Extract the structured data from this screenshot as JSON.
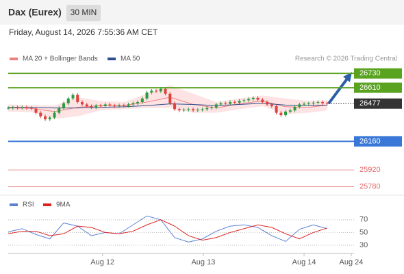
{
  "chart_data": {
    "type": "candlestick",
    "title": "Dax (Eurex)",
    "timeframe": "30 MIN",
    "timestamp": "Friday, August 14, 2026 7:55:36 AM CET",
    "source": "Research © 2026 Trading Central",
    "up_color": "#2e9a3e",
    "down_color": "#e0413a",
    "close": [
      26440,
      26445,
      26442,
      26448,
      26440,
      26435,
      26400,
      26370,
      26345,
      26360,
      26400,
      26440,
      26480,
      26520,
      26550,
      26490,
      26470,
      26455,
      26445,
      26460,
      26455,
      26470,
      26460,
      26455,
      26462,
      26458,
      26470,
      26480,
      26490,
      26520,
      26570,
      26585,
      26580,
      26600,
      26560,
      26480,
      26430,
      26420,
      26425,
      26430,
      26420,
      26425,
      26430,
      26440,
      26445,
      26470,
      26480,
      26475,
      26490,
      26485,
      26500,
      26505,
      26515,
      26525,
      26510,
      26490,
      26470,
      26455,
      26400,
      26380,
      26410,
      26420,
      26450,
      26470,
      26475,
      26478,
      26485,
      26490,
      26480,
      26477
    ],
    "xlim": [
      0,
      74.8
    ],
    "xticks": [
      {
        "value": 20.4,
        "label": "Aug 12"
      },
      {
        "value": 42.2,
        "label": "Aug 13"
      },
      {
        "value": 64,
        "label": "Aug 14"
      },
      {
        "value": 74.2,
        "label": "Aug 24"
      }
    ],
    "ylim": [
      25720,
      26800
    ],
    "series": [
      {
        "name": "MA 20 + Bollinger Bands",
        "color": "#f08080",
        "band_color": "#fde3e3",
        "x": [
          0,
          5,
          10,
          15,
          20,
          25,
          30,
          35,
          40,
          45,
          50,
          55,
          60,
          65,
          69
        ],
        "values": [
          26440,
          26438,
          26410,
          26445,
          26462,
          26462,
          26490,
          26530,
          26470,
          26440,
          26475,
          26500,
          26450,
          26445,
          26465
        ],
        "upper": [
          26470,
          26465,
          26460,
          26530,
          26500,
          26490,
          26560,
          26630,
          26560,
          26490,
          26520,
          26545,
          26520,
          26500,
          26505
        ],
        "lower": [
          26410,
          26405,
          26350,
          26370,
          26420,
          26430,
          26440,
          26440,
          26400,
          26400,
          26430,
          26455,
          26390,
          26400,
          26420
        ]
      },
      {
        "name": "MA 50",
        "color": "#2c4f8f",
        "x": [
          0,
          5,
          10,
          15,
          20,
          25,
          30,
          35,
          40,
          45,
          50,
          55,
          60,
          65,
          69
        ],
        "values": [
          26445,
          26445,
          26440,
          26440,
          26445,
          26450,
          26460,
          26475,
          26470,
          26460,
          26470,
          26480,
          26465,
          26460,
          26465
        ]
      }
    ],
    "levels": [
      {
        "value": 26730,
        "color": "#5aa321",
        "style": "box"
      },
      {
        "value": 26610,
        "color": "#5aa321",
        "style": "box"
      },
      {
        "value": 26477,
        "color": "#333333",
        "style": "dotted"
      },
      {
        "value": 26160,
        "color": "#3a78d8",
        "style": "box"
      },
      {
        "value": 25920,
        "color": "#e46a6a",
        "style": "text"
      },
      {
        "value": 25780,
        "color": "#e46a6a",
        "style": "text"
      }
    ],
    "indicator": {
      "ylim": [
        15,
        87
      ],
      "yticks": [
        30,
        50,
        70
      ],
      "series": [
        {
          "name": "RSI",
          "color": "#5b7fd6",
          "x": [
            0,
            3,
            6,
            9,
            12,
            15,
            18,
            21,
            24,
            27,
            30,
            33,
            36,
            39,
            42,
            45,
            48,
            51,
            54,
            57,
            60,
            63,
            66,
            69
          ],
          "values": [
            51,
            56,
            47,
            40,
            65,
            60,
            45,
            50,
            48,
            62,
            76,
            70,
            42,
            35,
            40,
            52,
            60,
            62,
            58,
            45,
            36,
            55,
            62,
            56
          ]
        },
        {
          "name": "9MA",
          "color": "#e02020",
          "x": [
            0,
            3,
            6,
            9,
            12,
            15,
            18,
            21,
            24,
            27,
            30,
            33,
            36,
            39,
            42,
            45,
            48,
            51,
            54,
            57,
            60,
            63,
            66,
            69
          ],
          "values": [
            48,
            52,
            52,
            45,
            48,
            60,
            58,
            50,
            48,
            52,
            62,
            70,
            60,
            45,
            38,
            42,
            50,
            56,
            62,
            58,
            48,
            40,
            50,
            57
          ]
        }
      ]
    }
  }
}
